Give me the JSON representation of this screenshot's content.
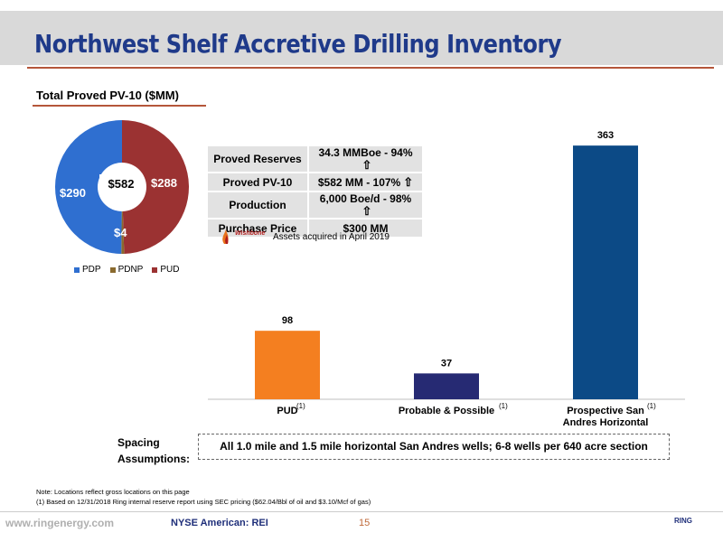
{
  "header": {
    "title": "Northwest Shelf Accretive Drilling Inventory"
  },
  "section": {
    "subtitle": "Total Proved PV-10 ($MM)"
  },
  "colors": {
    "pdp": "#2f6fd0",
    "pdnp": "#8a6a2e",
    "pud": "#9b3232",
    "bar_pud": "#f47f20",
    "bar_probable": "#262a73",
    "bar_prospective": "#0c4a86",
    "title": "#1f3a8a",
    "accent": "#b5563a"
  },
  "chart_data": [
    {
      "type": "pie",
      "title": "Total Proved PV-10 ($MM)",
      "center_label": "$582",
      "slices": [
        {
          "name": "PDP",
          "value": 290,
          "label": "$290"
        },
        {
          "name": "PDNP",
          "value": 4,
          "label": "$4"
        },
        {
          "name": "PUD",
          "value": 288,
          "label": "$288"
        }
      ],
      "legend_position": "bottom"
    },
    {
      "type": "bar",
      "categories": [
        "PUD",
        "Probable & Possible",
        "Prospective San Andres Horizontal"
      ],
      "category_lines": [
        [
          "PUD"
        ],
        [
          "Probable & Possible"
        ],
        [
          "Prospective San",
          "Andres Horizontal"
        ]
      ],
      "category_notes": [
        "(1)",
        "(1)",
        "(1)"
      ],
      "values": [
        98,
        37,
        363
      ],
      "ylim": [
        0,
        380
      ],
      "grid": false
    }
  ],
  "summary_table": {
    "rows": [
      {
        "label": "Proved Reserves",
        "value": "34.3 MMBoe - 94%",
        "arrow": true
      },
      {
        "label": "Proved PV-10",
        "value": "$582 MM - 107%",
        "arrow": true
      },
      {
        "label": "Production",
        "value": "6,000 Boe/d - 98%",
        "arrow": true
      },
      {
        "label": "Purchase Price",
        "value": "$300 MM",
        "arrow": false
      }
    ]
  },
  "acquisition": {
    "logo_text": "Wishbone",
    "note": "Assets acquired in April 2019"
  },
  "spacing": {
    "label_line1": "Spacing",
    "label_line2": "Assumptions:",
    "text": "All 1.0 mile and 1.5 mile horizontal San Andres wells; 6-8 wells per 640 acre section"
  },
  "notes": {
    "line1": "Note: Locations reflect gross locations on this page",
    "line2": "(1) Based on 12/31/2018 Ring internal reserve report using SEC pricing ($62.04/Bbl of oil and $3.10/Mcf of gas)"
  },
  "footer": {
    "url": "www.ringenergy.com",
    "exchange": "NYSE American: REI",
    "page": "15",
    "logo": "RING"
  }
}
